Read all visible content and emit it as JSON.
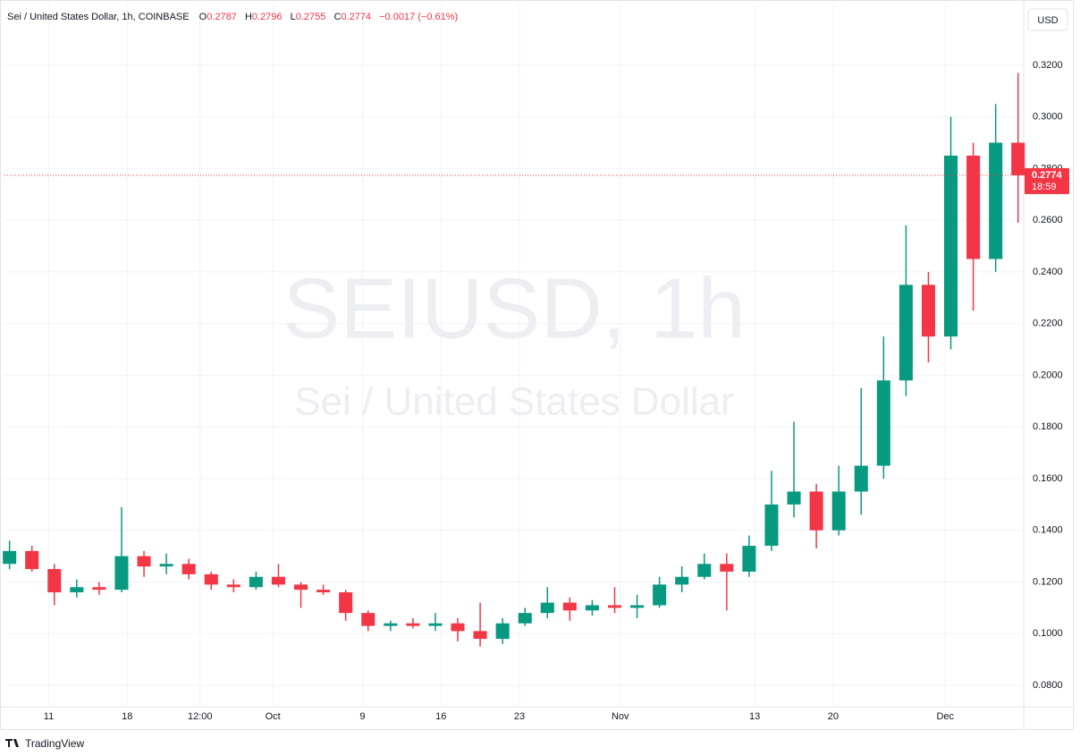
{
  "header": {
    "symbol": "Sei / United States Dollar, 1h, COINBASE",
    "open_prefix": "O",
    "open": "0.2787",
    "high_prefix": "H",
    "high": "0.2796",
    "low_prefix": "L",
    "low": "0.2755",
    "close_prefix": "C",
    "close": "0.2774",
    "change": "−0.0017 (−0.61%)"
  },
  "currency": "USD",
  "watermark": {
    "symbol": "SEIUSD, 1h",
    "name": "Sei / United States Dollar"
  },
  "footer": "TradingView",
  "chart_data": {
    "type": "candlestick",
    "up_color": "#089981",
    "down_color": "#f23645",
    "grid": true,
    "x": [
      7.5,
      9.5,
      11.5,
      13.5,
      15.5,
      17.5,
      19.5,
      21.5,
      23.5,
      25.5,
      27.5,
      29.5,
      31.5,
      33.5,
      35.5,
      37.5,
      39.5,
      41.5,
      43.5,
      45.5,
      47.5,
      49.5,
      51.5,
      53.5,
      55.5,
      57.5,
      59.5,
      61.5,
      63.5,
      65.5,
      67.5,
      69.5,
      71.5,
      73.5,
      75.5,
      77.5,
      79.5,
      81.5,
      83.5,
      85.5,
      87.5,
      89.5,
      91.5,
      93.5,
      95.5,
      97.5
    ],
    "open": [
      0.127,
      0.132,
      0.125,
      0.116,
      0.118,
      0.117,
      0.13,
      0.126,
      0.127,
      0.123,
      0.119,
      0.118,
      0.122,
      0.119,
      0.117,
      0.116,
      0.108,
      0.103,
      0.104,
      0.103,
      0.104,
      0.101,
      0.098,
      0.104,
      0.108,
      0.112,
      0.109,
      0.111,
      0.11,
      0.111,
      0.119,
      0.122,
      0.127,
      0.124,
      0.134,
      0.15,
      0.155,
      0.14,
      0.155,
      0.165,
      0.198,
      0.235,
      0.215,
      0.285,
      0.245,
      0.29
    ],
    "high": [
      0.136,
      0.134,
      0.127,
      0.121,
      0.12,
      0.149,
      0.132,
      0.131,
      0.129,
      0.124,
      0.121,
      0.124,
      0.127,
      0.12,
      0.119,
      0.117,
      0.109,
      0.105,
      0.106,
      0.108,
      0.106,
      0.112,
      0.106,
      0.11,
      0.118,
      0.114,
      0.113,
      0.118,
      0.115,
      0.122,
      0.126,
      0.131,
      0.131,
      0.138,
      0.163,
      0.182,
      0.158,
      0.165,
      0.195,
      0.215,
      0.258,
      0.24,
      0.3,
      0.29,
      0.305,
      0.317
    ],
    "low": [
      0.125,
      0.124,
      0.111,
      0.114,
      0.115,
      0.116,
      0.122,
      0.123,
      0.121,
      0.117,
      0.116,
      0.117,
      0.118,
      0.11,
      0.115,
      0.105,
      0.101,
      0.101,
      0.102,
      0.101,
      0.097,
      0.095,
      0.096,
      0.103,
      0.106,
      0.105,
      0.107,
      0.108,
      0.106,
      0.11,
      0.116,
      0.121,
      0.109,
      0.122,
      0.132,
      0.145,
      0.133,
      0.138,
      0.146,
      0.16,
      0.192,
      0.205,
      0.21,
      0.225,
      0.24,
      0.259
    ],
    "close": [
      0.132,
      0.125,
      0.116,
      0.118,
      0.117,
      0.13,
      0.126,
      0.127,
      0.123,
      0.119,
      0.118,
      0.122,
      0.119,
      0.117,
      0.116,
      0.108,
      0.103,
      0.104,
      0.103,
      0.104,
      0.101,
      0.098,
      0.104,
      0.108,
      0.112,
      0.109,
      0.111,
      0.11,
      0.111,
      0.119,
      0.122,
      0.127,
      0.124,
      0.134,
      0.15,
      0.155,
      0.14,
      0.155,
      0.165,
      0.198,
      0.235,
      0.215,
      0.285,
      0.245,
      0.29,
      0.2774
    ],
    "xlim": [
      7.05,
      98.0
    ],
    "xticks": [
      {
        "value": 11,
        "label": "11"
      },
      {
        "value": 18,
        "label": "18"
      },
      {
        "value": 24.5,
        "label": "12:00"
      },
      {
        "value": 31,
        "label": "Oct"
      },
      {
        "value": 39,
        "label": "9"
      },
      {
        "value": 46,
        "label": "16"
      },
      {
        "value": 53,
        "label": "23"
      },
      {
        "value": 62,
        "label": "Nov"
      },
      {
        "value": 74,
        "label": "13"
      },
      {
        "value": 81,
        "label": "20"
      },
      {
        "value": 91,
        "label": "Dec"
      }
    ],
    "ylim": [
      0.0717,
      0.3435
    ],
    "yticks": [
      {
        "value": 0.08,
        "label": "0.0800"
      },
      {
        "value": 0.1,
        "label": "0.1000"
      },
      {
        "value": 0.12,
        "label": "0.1200"
      },
      {
        "value": 0.14,
        "label": "0.1400"
      },
      {
        "value": 0.16,
        "label": "0.1600"
      },
      {
        "value": 0.18,
        "label": "0.1800"
      },
      {
        "value": 0.2,
        "label": "0.2000"
      },
      {
        "value": 0.22,
        "label": "0.2200"
      },
      {
        "value": 0.24,
        "label": "0.2400"
      },
      {
        "value": 0.26,
        "label": "0.2600"
      },
      {
        "value": 0.28,
        "label": "0.2800"
      },
      {
        "value": 0.3,
        "label": "0.3000"
      },
      {
        "value": 0.32,
        "label": "0.3200"
      }
    ],
    "last_price": 0.2774,
    "countdown": "18:59"
  }
}
